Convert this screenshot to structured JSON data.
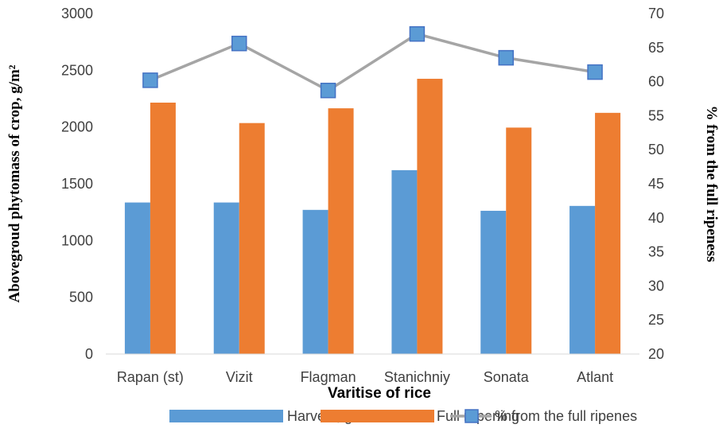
{
  "chart_data": {
    "type": "bar",
    "categories": [
      "Rapan (st)",
      "Vizit",
      "Flagman",
      "Stanichniy",
      "Sonata",
      "Atlant"
    ],
    "series": [
      {
        "name": "Harvest, g/m2",
        "axis": "left",
        "kind": "bar",
        "color": "#5B9BD5",
        "values": [
          1335,
          1335,
          1270,
          1620,
          1262,
          1305
        ]
      },
      {
        "name": "Full repening",
        "axis": "left",
        "kind": "bar",
        "color": "#ED7D31",
        "values": [
          2215,
          2035,
          2165,
          2425,
          1995,
          2125
        ]
      },
      {
        "name": "% from the full ripenes",
        "axis": "right",
        "kind": "line",
        "color": "#A5A5A5",
        "marker_color": "#4472C4",
        "values": [
          60.2,
          65.6,
          58.7,
          67.0,
          63.5,
          61.4
        ]
      }
    ],
    "ylabel": "Abovegroud phytomass of crop, g/m²",
    "y2label": "% from the full ripeness",
    "xlabel": "Varitise of rice",
    "ylim": [
      0,
      3000
    ],
    "yticks": [
      "0",
      "500",
      "1000",
      "1500",
      "2000",
      "2500",
      "3000"
    ],
    "y2lim": [
      20,
      70
    ],
    "y2ticks": [
      "20",
      "25",
      "30",
      "35",
      "40",
      "45",
      "50",
      "55",
      "60",
      "65",
      "70"
    ],
    "grid": false,
    "legend": "bottom"
  }
}
